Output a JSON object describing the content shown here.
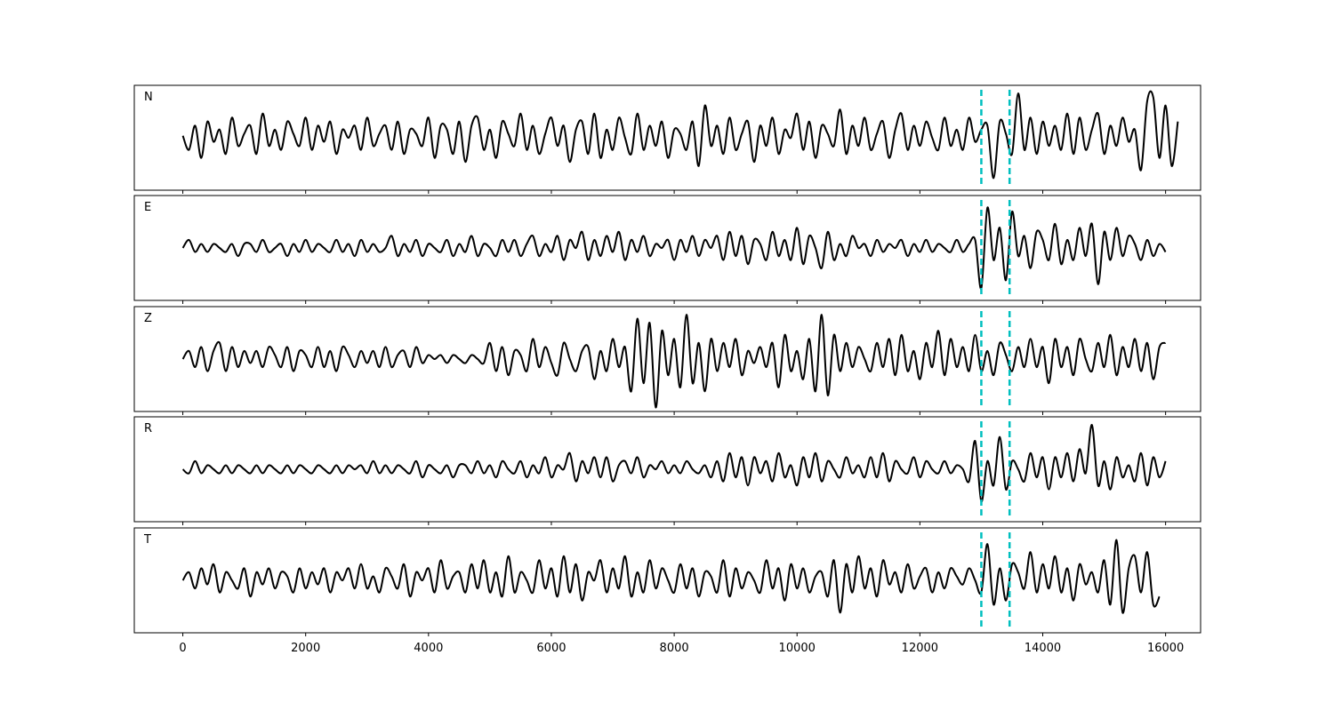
{
  "chart_data": {
    "type": "line",
    "xlim": [
      -790,
      16570
    ],
    "ylim": [
      -1.3,
      1.3
    ],
    "grid": false,
    "x_ticks": [
      0,
      2000,
      4000,
      6000,
      8000,
      10000,
      12000,
      14000,
      16000
    ],
    "x_tick_labels": [
      "0",
      "2000",
      "4000",
      "6000",
      "8000",
      "10000",
      "12000",
      "14000",
      "16000"
    ],
    "trace_color": "#000000",
    "marker_color": "#00bfbf",
    "vertical_markers": [
      13000,
      13460
    ],
    "x_start": 0,
    "x_step": 100,
    "panels": [
      {
        "label": "N",
        "values": [
          0.05,
          -0.3,
          0.3,
          -0.5,
          0.4,
          -0.1,
          0.2,
          -0.4,
          0.5,
          -0.2,
          0.1,
          0.3,
          -0.4,
          0.6,
          -0.2,
          0.2,
          -0.3,
          0.4,
          0.1,
          -0.2,
          0.5,
          -0.3,
          0.3,
          -0.1,
          0.4,
          -0.4,
          0.2,
          0.0,
          0.3,
          -0.3,
          0.5,
          -0.2,
          0.1,
          0.3,
          -0.3,
          0.4,
          -0.4,
          0.2,
          0.1,
          -0.2,
          0.5,
          -0.5,
          0.3,
          0.2,
          -0.4,
          0.4,
          -0.6,
          0.3,
          0.5,
          -0.3,
          0.2,
          -0.5,
          0.4,
          0.1,
          -0.2,
          0.6,
          -0.3,
          0.3,
          -0.4,
          0.1,
          0.5,
          -0.2,
          0.3,
          -0.6,
          0.2,
          0.4,
          -0.4,
          0.6,
          -0.5,
          0.2,
          -0.3,
          0.5,
          0.0,
          -0.4,
          0.6,
          -0.3,
          0.3,
          -0.2,
          0.4,
          -0.5,
          0.2,
          0.1,
          -0.3,
          0.4,
          -0.7,
          0.8,
          -0.2,
          0.3,
          -0.4,
          0.5,
          -0.3,
          0.1,
          0.4,
          -0.6,
          0.3,
          -0.2,
          0.5,
          -0.4,
          0.2,
          0.0,
          0.6,
          -0.3,
          0.4,
          -0.5,
          0.3,
          0.1,
          -0.2,
          0.7,
          -0.4,
          0.3,
          -0.2,
          0.5,
          -0.3,
          0.1,
          0.4,
          -0.5,
          0.2,
          0.6,
          -0.3,
          0.3,
          -0.2,
          0.4,
          0.0,
          -0.3,
          0.5,
          -0.2,
          0.2,
          -0.3,
          0.5,
          -0.1,
          0.2,
          0.3,
          -1.0,
          0.4,
          0.1,
          -0.4,
          1.1,
          -0.3,
          0.5,
          -0.4,
          0.4,
          -0.2,
          0.3,
          -0.3,
          0.6,
          -0.4,
          0.5,
          -0.3,
          0.2,
          0.6,
          -0.4,
          0.3,
          -0.2,
          0.5,
          -0.1,
          0.2,
          -0.8,
          0.9,
          1.0,
          -0.5,
          0.8,
          -0.7,
          0.4
        ]
      },
      {
        "label": "E",
        "values": [
          0.0,
          0.2,
          -0.1,
          0.1,
          -0.1,
          0.1,
          0.0,
          -0.1,
          0.1,
          -0.2,
          0.1,
          0.1,
          -0.1,
          0.2,
          -0.1,
          0.0,
          0.1,
          -0.2,
          0.1,
          -0.1,
          0.2,
          -0.1,
          0.1,
          0.0,
          -0.1,
          0.2,
          -0.1,
          0.1,
          -0.2,
          0.2,
          -0.1,
          0.1,
          -0.1,
          0.0,
          0.3,
          -0.2,
          0.1,
          -0.1,
          0.2,
          -0.2,
          0.1,
          0.0,
          -0.1,
          0.2,
          -0.2,
          0.1,
          -0.1,
          0.3,
          -0.2,
          0.1,
          0.0,
          -0.2,
          0.2,
          -0.1,
          0.2,
          -0.2,
          0.1,
          0.3,
          -0.2,
          0.1,
          -0.1,
          0.3,
          -0.3,
          0.2,
          0.0,
          0.4,
          -0.3,
          0.2,
          -0.2,
          0.3,
          -0.1,
          0.4,
          -0.3,
          0.2,
          -0.1,
          0.3,
          -0.2,
          0.1,
          0.0,
          0.2,
          -0.3,
          0.2,
          -0.1,
          0.3,
          -0.2,
          0.2,
          0.0,
          0.3,
          -0.3,
          0.4,
          -0.2,
          0.3,
          -0.4,
          0.2,
          0.1,
          -0.3,
          0.4,
          -0.2,
          0.2,
          -0.3,
          0.5,
          -0.4,
          0.3,
          0.0,
          -0.5,
          0.4,
          -0.3,
          0.1,
          -0.2,
          0.3,
          0.0,
          0.1,
          -0.2,
          0.2,
          -0.1,
          0.1,
          0.0,
          0.2,
          -0.2,
          0.1,
          -0.1,
          0.2,
          -0.1,
          0.1,
          0.0,
          -0.1,
          0.2,
          -0.1,
          0.1,
          0.2,
          -1.0,
          1.0,
          -0.3,
          0.5,
          -0.8,
          0.9,
          -0.2,
          0.3,
          -0.5,
          0.4,
          0.2,
          -0.3,
          0.6,
          -0.4,
          0.2,
          -0.3,
          0.5,
          -0.2,
          0.6,
          -0.9,
          0.4,
          -0.3,
          0.5,
          -0.2,
          0.3,
          0.1,
          -0.3,
          0.2,
          -0.2,
          0.1,
          -0.1
        ]
      },
      {
        "label": "Z",
        "values": [
          0.0,
          0.2,
          -0.2,
          0.3,
          -0.3,
          0.2,
          0.4,
          -0.3,
          0.3,
          -0.2,
          0.2,
          -0.1,
          0.2,
          -0.2,
          0.3,
          0.1,
          -0.2,
          0.3,
          -0.3,
          0.2,
          0.1,
          -0.2,
          0.3,
          -0.2,
          0.2,
          -0.3,
          0.3,
          0.1,
          -0.2,
          0.2,
          -0.1,
          0.2,
          -0.2,
          0.3,
          -0.2,
          0.1,
          0.2,
          -0.2,
          0.3,
          -0.1,
          0.1,
          0.0,
          0.1,
          -0.1,
          0.1,
          0.0,
          -0.1,
          0.1,
          0.0,
          -0.1,
          0.4,
          -0.3,
          0.3,
          -0.4,
          0.2,
          0.1,
          -0.3,
          0.5,
          -0.2,
          0.3,
          -0.1,
          -0.4,
          0.4,
          0.0,
          -0.3,
          0.2,
          0.3,
          -0.5,
          0.2,
          -0.3,
          0.5,
          -0.2,
          0.3,
          -0.8,
          1.0,
          -0.6,
          0.9,
          -1.2,
          0.7,
          -0.4,
          0.5,
          -0.7,
          1.1,
          -0.6,
          0.4,
          -0.8,
          0.5,
          -0.3,
          0.4,
          -0.2,
          0.5,
          -0.4,
          0.2,
          -0.1,
          0.3,
          -0.2,
          0.4,
          -0.7,
          0.6,
          -0.3,
          0.2,
          -0.5,
          0.5,
          -0.8,
          1.1,
          -0.9,
          0.6,
          -0.3,
          0.4,
          -0.2,
          0.3,
          0.0,
          -0.3,
          0.4,
          -0.2,
          0.5,
          -0.4,
          0.6,
          -0.3,
          0.2,
          -0.5,
          0.4,
          -0.2,
          0.7,
          -0.4,
          0.5,
          -0.2,
          0.3,
          -0.3,
          0.6,
          -0.3,
          0.2,
          -0.4,
          0.4,
          0.1,
          -0.3,
          0.3,
          -0.2,
          0.5,
          -0.2,
          0.3,
          -0.6,
          0.5,
          -0.2,
          0.3,
          -0.4,
          0.5,
          0.0,
          -0.3,
          0.4,
          -0.2,
          0.6,
          -0.4,
          0.3,
          -0.2,
          0.5,
          -0.3,
          0.4,
          -0.5,
          0.3,
          0.4
        ]
      },
      {
        "label": "R",
        "values": [
          0.0,
          -0.1,
          0.2,
          -0.1,
          0.1,
          0.0,
          -0.1,
          0.1,
          -0.1,
          0.1,
          0.0,
          -0.1,
          0.1,
          -0.1,
          0.1,
          0.0,
          -0.1,
          0.1,
          -0.1,
          0.1,
          0.0,
          -0.1,
          0.1,
          0.0,
          -0.1,
          0.1,
          -0.1,
          0.1,
          0.0,
          0.1,
          -0.1,
          0.2,
          -0.1,
          0.1,
          -0.1,
          0.1,
          0.0,
          -0.1,
          0.2,
          -0.2,
          0.1,
          0.0,
          -0.1,
          0.1,
          -0.2,
          0.1,
          0.1,
          -0.1,
          0.2,
          -0.1,
          0.1,
          -0.2,
          0.2,
          0.0,
          -0.1,
          0.2,
          -0.2,
          0.1,
          -0.1,
          0.3,
          -0.2,
          0.1,
          0.0,
          0.4,
          -0.3,
          0.2,
          -0.1,
          0.3,
          -0.2,
          0.3,
          -0.3,
          0.1,
          0.2,
          -0.1,
          0.3,
          -0.2,
          0.1,
          0.0,
          0.2,
          -0.1,
          0.1,
          -0.1,
          0.2,
          0.0,
          -0.1,
          0.1,
          -0.2,
          0.2,
          -0.3,
          0.4,
          -0.2,
          0.3,
          -0.4,
          0.3,
          -0.1,
          0.2,
          -0.3,
          0.4,
          -0.2,
          0.1,
          -0.4,
          0.3,
          -0.2,
          0.4,
          -0.3,
          0.2,
          0.0,
          -0.2,
          0.3,
          -0.1,
          0.1,
          -0.2,
          0.3,
          -0.2,
          0.4,
          -0.3,
          0.2,
          0.0,
          -0.1,
          0.3,
          -0.2,
          0.2,
          0.0,
          -0.1,
          0.2,
          -0.1,
          0.1,
          0.0,
          -0.3,
          0.7,
          -0.8,
          0.2,
          -0.4,
          0.8,
          -0.5,
          0.2,
          0.0,
          -0.3,
          0.4,
          -0.2,
          0.3,
          -0.5,
          0.3,
          -0.2,
          0.4,
          -0.3,
          0.5,
          -0.1,
          1.1,
          -0.4,
          0.2,
          -0.5,
          0.3,
          -0.2,
          0.1,
          -0.3,
          0.4,
          -0.4,
          0.3,
          -0.2,
          0.2
        ]
      },
      {
        "label": "T",
        "values": [
          0.0,
          0.2,
          -0.2,
          0.3,
          -0.1,
          0.4,
          -0.3,
          0.2,
          0.0,
          -0.2,
          0.3,
          -0.4,
          0.2,
          -0.1,
          0.3,
          -0.2,
          0.2,
          0.1,
          -0.3,
          0.3,
          -0.2,
          0.2,
          -0.1,
          0.3,
          -0.3,
          0.2,
          0.0,
          0.3,
          -0.2,
          0.4,
          -0.2,
          0.1,
          -0.3,
          0.3,
          0.1,
          -0.2,
          0.4,
          -0.4,
          0.2,
          0.0,
          0.3,
          -0.3,
          0.5,
          -0.2,
          0.1,
          0.2,
          -0.3,
          0.4,
          -0.2,
          0.5,
          -0.3,
          0.2,
          -0.4,
          0.6,
          -0.3,
          0.2,
          0.0,
          -0.3,
          0.5,
          -0.2,
          0.3,
          -0.4,
          0.6,
          -0.3,
          0.4,
          -0.5,
          0.2,
          0.0,
          0.5,
          -0.3,
          0.3,
          -0.2,
          0.6,
          -0.4,
          0.2,
          -0.3,
          0.5,
          -0.2,
          0.3,
          0.0,
          -0.3,
          0.4,
          -0.2,
          0.3,
          -0.4,
          0.2,
          0.1,
          -0.3,
          0.5,
          -0.4,
          0.3,
          -0.2,
          0.2,
          0.0,
          -0.3,
          0.5,
          -0.2,
          0.3,
          -0.5,
          0.4,
          -0.2,
          0.3,
          -0.3,
          0.1,
          0.2,
          -0.4,
          0.5,
          -0.8,
          0.4,
          -0.3,
          0.6,
          -0.2,
          0.3,
          -0.4,
          0.5,
          -0.1,
          0.2,
          -0.3,
          0.4,
          -0.2,
          0.1,
          0.3,
          -0.3,
          0.2,
          -0.2,
          0.3,
          0.1,
          -0.1,
          0.3,
          0.0,
          -0.3,
          0.9,
          -0.6,
          0.3,
          -0.5,
          0.4,
          0.2,
          -0.2,
          0.7,
          -0.3,
          0.4,
          -0.2,
          0.6,
          -0.3,
          0.3,
          -0.5,
          0.4,
          -0.1,
          0.2,
          -0.3,
          0.5,
          -0.6,
          1.0,
          -0.8,
          0.3,
          0.6,
          -0.3,
          0.7,
          -0.6,
          -0.4
        ]
      }
    ]
  }
}
